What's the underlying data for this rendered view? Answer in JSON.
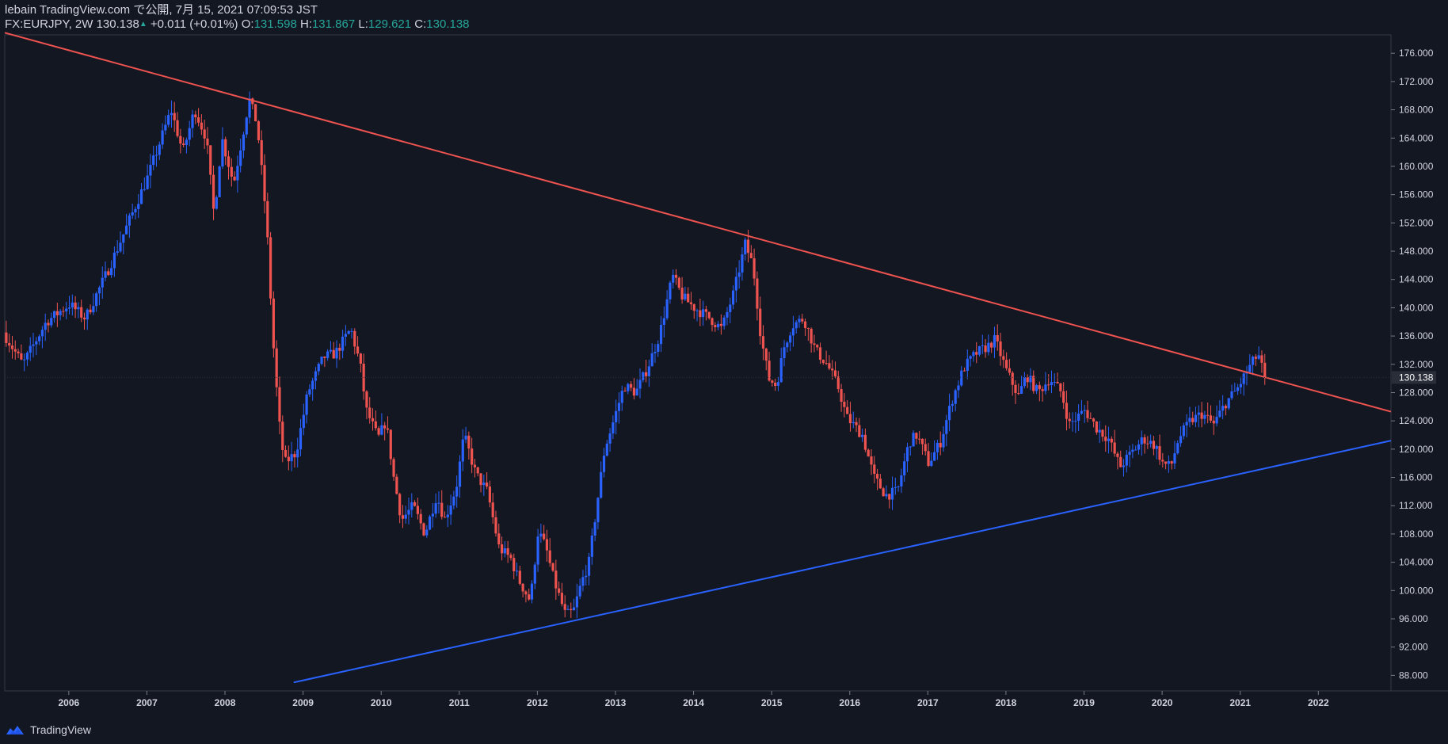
{
  "header": {
    "publish_line": "lebain TradingView.com で公開, 7月 15, 2021 07:09:53 JST",
    "symbol": "FX:EURJPY, 2W",
    "last": "130.138",
    "change": "+0.011 (+0.01%)",
    "open_label": "O:",
    "open": "131.598",
    "high_label": "H:",
    "high": "131.867",
    "low_label": "L:",
    "low": "129.621",
    "close_label": "C:",
    "close": "130.138"
  },
  "footer": {
    "brand": "TradingView",
    "logo_icon": "tradingview-logo-icon"
  },
  "colors": {
    "background": "#131722",
    "up": "#2962ff",
    "down": "#ef5350",
    "resistance": "#ef5350",
    "support": "#2962ff",
    "text": "#d1d4dc"
  },
  "chart_data": {
    "type": "candlestick",
    "symbol": "FX:EURJPY",
    "interval": "2W",
    "ylim": [
      85.8,
      178.6
    ],
    "xlim": [
      2005.35,
      2023.1
    ],
    "y_ticks": [
      88,
      92,
      96,
      100,
      104,
      108,
      112,
      116,
      120,
      124,
      128,
      132,
      136,
      140,
      144,
      148,
      152,
      156,
      160,
      164,
      168,
      172,
      176
    ],
    "x_tick_labels": [
      "2006",
      "2007",
      "2008",
      "2009",
      "2010",
      "2011",
      "2012",
      "2013",
      "2014",
      "2015",
      "2016",
      "2017",
      "2018",
      "2019",
      "2020",
      "2021",
      "2022"
    ],
    "last_price": 130.138,
    "last_price_label": "130.138",
    "price_path": [
      [
        2005.35,
        136.5
      ],
      [
        2005.6,
        132.0
      ],
      [
        2005.9,
        138.0
      ],
      [
        2006.2,
        140.5
      ],
      [
        2006.4,
        138.5
      ],
      [
        2006.7,
        145.5
      ],
      [
        2006.95,
        152.0
      ],
      [
        2007.2,
        158.5
      ],
      [
        2007.5,
        168.0
      ],
      [
        2007.65,
        162.0
      ],
      [
        2007.8,
        168.0
      ],
      [
        2007.95,
        164.0
      ],
      [
        2008.05,
        153.0
      ],
      [
        2008.15,
        164.0
      ],
      [
        2008.3,
        157.5
      ],
      [
        2008.5,
        169.5
      ],
      [
        2008.6,
        166.0
      ],
      [
        2008.72,
        152.5
      ],
      [
        2008.8,
        136.0
      ],
      [
        2008.88,
        124.0
      ],
      [
        2008.95,
        118.0
      ],
      [
        2009.1,
        119.5
      ],
      [
        2009.25,
        128.0
      ],
      [
        2009.45,
        133.0
      ],
      [
        2009.6,
        133.5
      ],
      [
        2009.8,
        137.0
      ],
      [
        2009.92,
        132.0
      ],
      [
        2010.0,
        125.5
      ],
      [
        2010.15,
        121.5
      ],
      [
        2010.25,
        124.0
      ],
      [
        2010.35,
        116.0
      ],
      [
        2010.45,
        110.0
      ],
      [
        2010.6,
        112.0
      ],
      [
        2010.75,
        108.0
      ],
      [
        2010.9,
        113.5
      ],
      [
        2011.0,
        110.0
      ],
      [
        2011.15,
        114.5
      ],
      [
        2011.25,
        122.0
      ],
      [
        2011.4,
        116.5
      ],
      [
        2011.55,
        114.0
      ],
      [
        2011.7,
        106.0
      ],
      [
        2011.85,
        104.5
      ],
      [
        2011.95,
        101.5
      ],
      [
        2012.1,
        98.5
      ],
      [
        2012.2,
        108.5
      ],
      [
        2012.3,
        106.0
      ],
      [
        2012.4,
        101.5
      ],
      [
        2012.55,
        96.5
      ],
      [
        2012.65,
        97.0
      ],
      [
        2012.75,
        101.0
      ],
      [
        2012.85,
        104.0
      ],
      [
        2012.95,
        112.0
      ],
      [
        2013.05,
        120.0
      ],
      [
        2013.15,
        123.5
      ],
      [
        2013.3,
        129.0
      ],
      [
        2013.45,
        128.0
      ],
      [
        2013.6,
        131.5
      ],
      [
        2013.75,
        136.0
      ],
      [
        2013.92,
        144.5
      ],
      [
        2014.05,
        141.5
      ],
      [
        2014.2,
        140.0
      ],
      [
        2014.4,
        138.5
      ],
      [
        2014.55,
        137.0
      ],
      [
        2014.7,
        142.0
      ],
      [
        2014.85,
        149.0
      ],
      [
        2014.95,
        146.0
      ],
      [
        2015.05,
        136.0
      ],
      [
        2015.15,
        130.0
      ],
      [
        2015.25,
        129.0
      ],
      [
        2015.35,
        134.5
      ],
      [
        2015.45,
        137.5
      ],
      [
        2015.6,
        138.5
      ],
      [
        2015.75,
        134.0
      ],
      [
        2015.9,
        132.0
      ],
      [
        2016.05,
        128.5
      ],
      [
        2016.15,
        124.5
      ],
      [
        2016.35,
        122.0
      ],
      [
        2016.5,
        116.0
      ],
      [
        2016.65,
        113.5
      ],
      [
        2016.8,
        114.0
      ],
      [
        2016.95,
        121.0
      ],
      [
        2017.05,
        122.0
      ],
      [
        2017.2,
        118.0
      ],
      [
        2017.35,
        121.0
      ],
      [
        2017.5,
        127.0
      ],
      [
        2017.65,
        131.5
      ],
      [
        2017.8,
        133.5
      ],
      [
        2017.95,
        134.5
      ],
      [
        2018.05,
        135.5
      ],
      [
        2018.2,
        131.0
      ],
      [
        2018.35,
        127.5
      ],
      [
        2018.45,
        130.5
      ],
      [
        2018.6,
        128.0
      ],
      [
        2018.75,
        130.0
      ],
      [
        2018.9,
        128.0
      ],
      [
        2019.0,
        123.5
      ],
      [
        2019.2,
        125.5
      ],
      [
        2019.35,
        123.0
      ],
      [
        2019.5,
        121.5
      ],
      [
        2019.65,
        117.5
      ],
      [
        2019.8,
        119.5
      ],
      [
        2019.95,
        121.5
      ],
      [
        2020.1,
        120.5
      ],
      [
        2020.2,
        118.0
      ],
      [
        2020.3,
        117.5
      ],
      [
        2020.4,
        121.5
      ],
      [
        2020.55,
        124.0
      ],
      [
        2020.7,
        125.0
      ],
      [
        2020.85,
        123.5
      ],
      [
        2021.0,
        126.5
      ],
      [
        2021.15,
        128.5
      ],
      [
        2021.3,
        131.5
      ],
      [
        2021.42,
        133.5
      ],
      [
        2021.5,
        130.14
      ]
    ],
    "trendlines": [
      {
        "name": "resistance",
        "color": "#ef5350",
        "from": [
          2005.35,
          178.9
        ],
        "to": [
          2023.1,
          125.3
        ]
      },
      {
        "name": "support",
        "color": "#2962ff",
        "from": [
          2009.05,
          87.0
        ],
        "to": [
          2023.1,
          121.2
        ]
      }
    ]
  }
}
